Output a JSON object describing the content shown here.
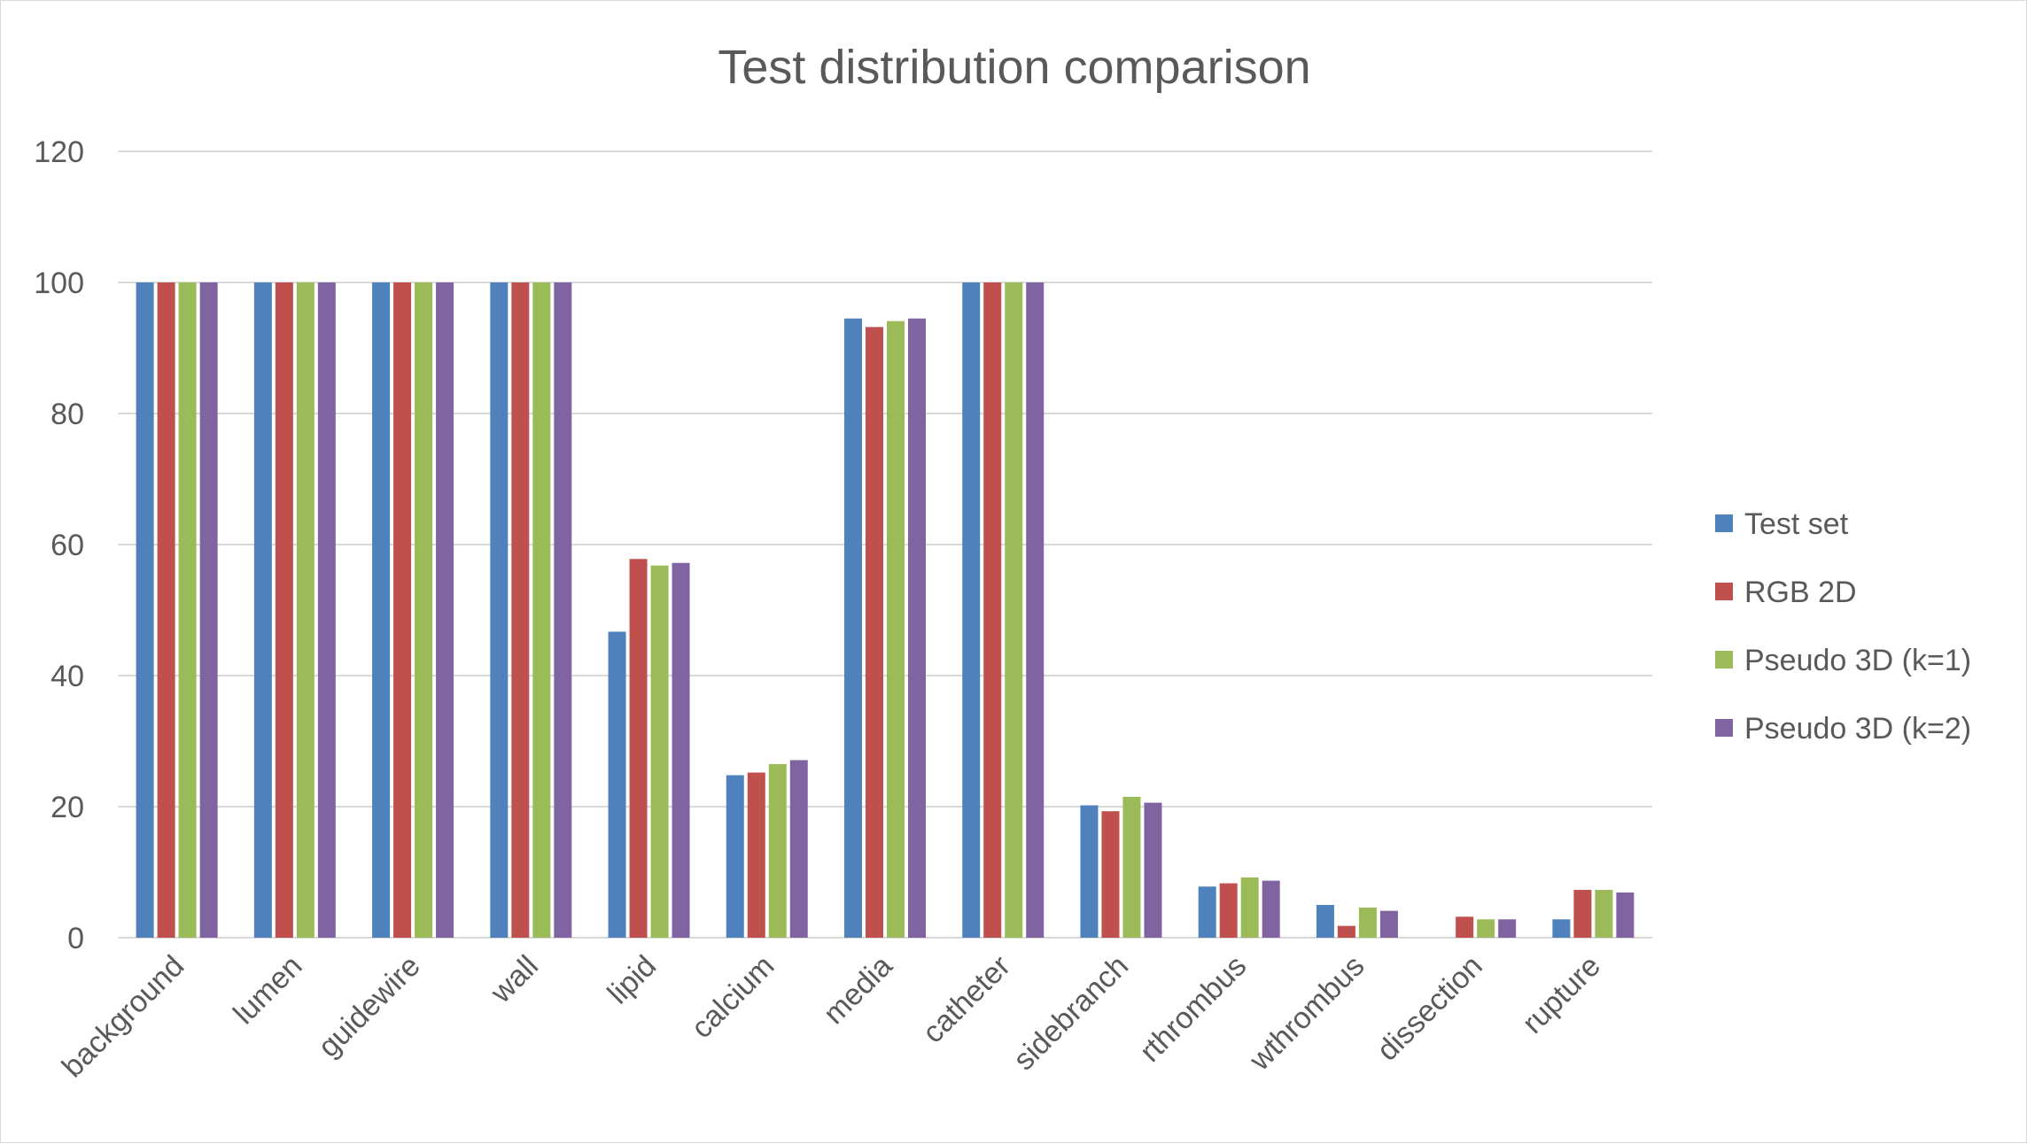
{
  "chart_data": {
    "type": "bar",
    "title": "Test distribution comparison",
    "xlabel": "",
    "ylabel": "",
    "ylim": [
      0,
      120
    ],
    "yticks": [
      0,
      20,
      40,
      60,
      80,
      100,
      120
    ],
    "grid": true,
    "legend_position": "right",
    "categories": [
      "background",
      "lumen",
      "guidewire",
      "wall",
      "lipid",
      "calcium",
      "media",
      "catheter",
      "sidebranch",
      "rthrombus",
      "wthrombus",
      "dissection",
      "rupture"
    ],
    "series": [
      {
        "name": "Test set",
        "color": "#4f81bd",
        "values": [
          100,
          100,
          100,
          100,
          46.7,
          24.8,
          94.5,
          100,
          20.2,
          7.8,
          5.0,
          0,
          2.8
        ]
      },
      {
        "name": "RGB 2D",
        "color": "#c0504d",
        "values": [
          100,
          100,
          100,
          100,
          57.8,
          25.2,
          93.2,
          100,
          19.3,
          8.3,
          1.8,
          3.2,
          7.3
        ]
      },
      {
        "name": "Pseudo 3D (k=1)",
        "color": "#9bbb59",
        "values": [
          100,
          100,
          100,
          100,
          56.8,
          26.5,
          94.1,
          100,
          21.5,
          9.2,
          4.6,
          2.8,
          7.3
        ]
      },
      {
        "name": "Pseudo 3D (k=2)",
        "color": "#8064a2",
        "values": [
          100,
          100,
          100,
          100,
          57.2,
          27.1,
          94.5,
          100,
          20.6,
          8.7,
          4.1,
          2.8,
          6.9
        ]
      }
    ]
  }
}
